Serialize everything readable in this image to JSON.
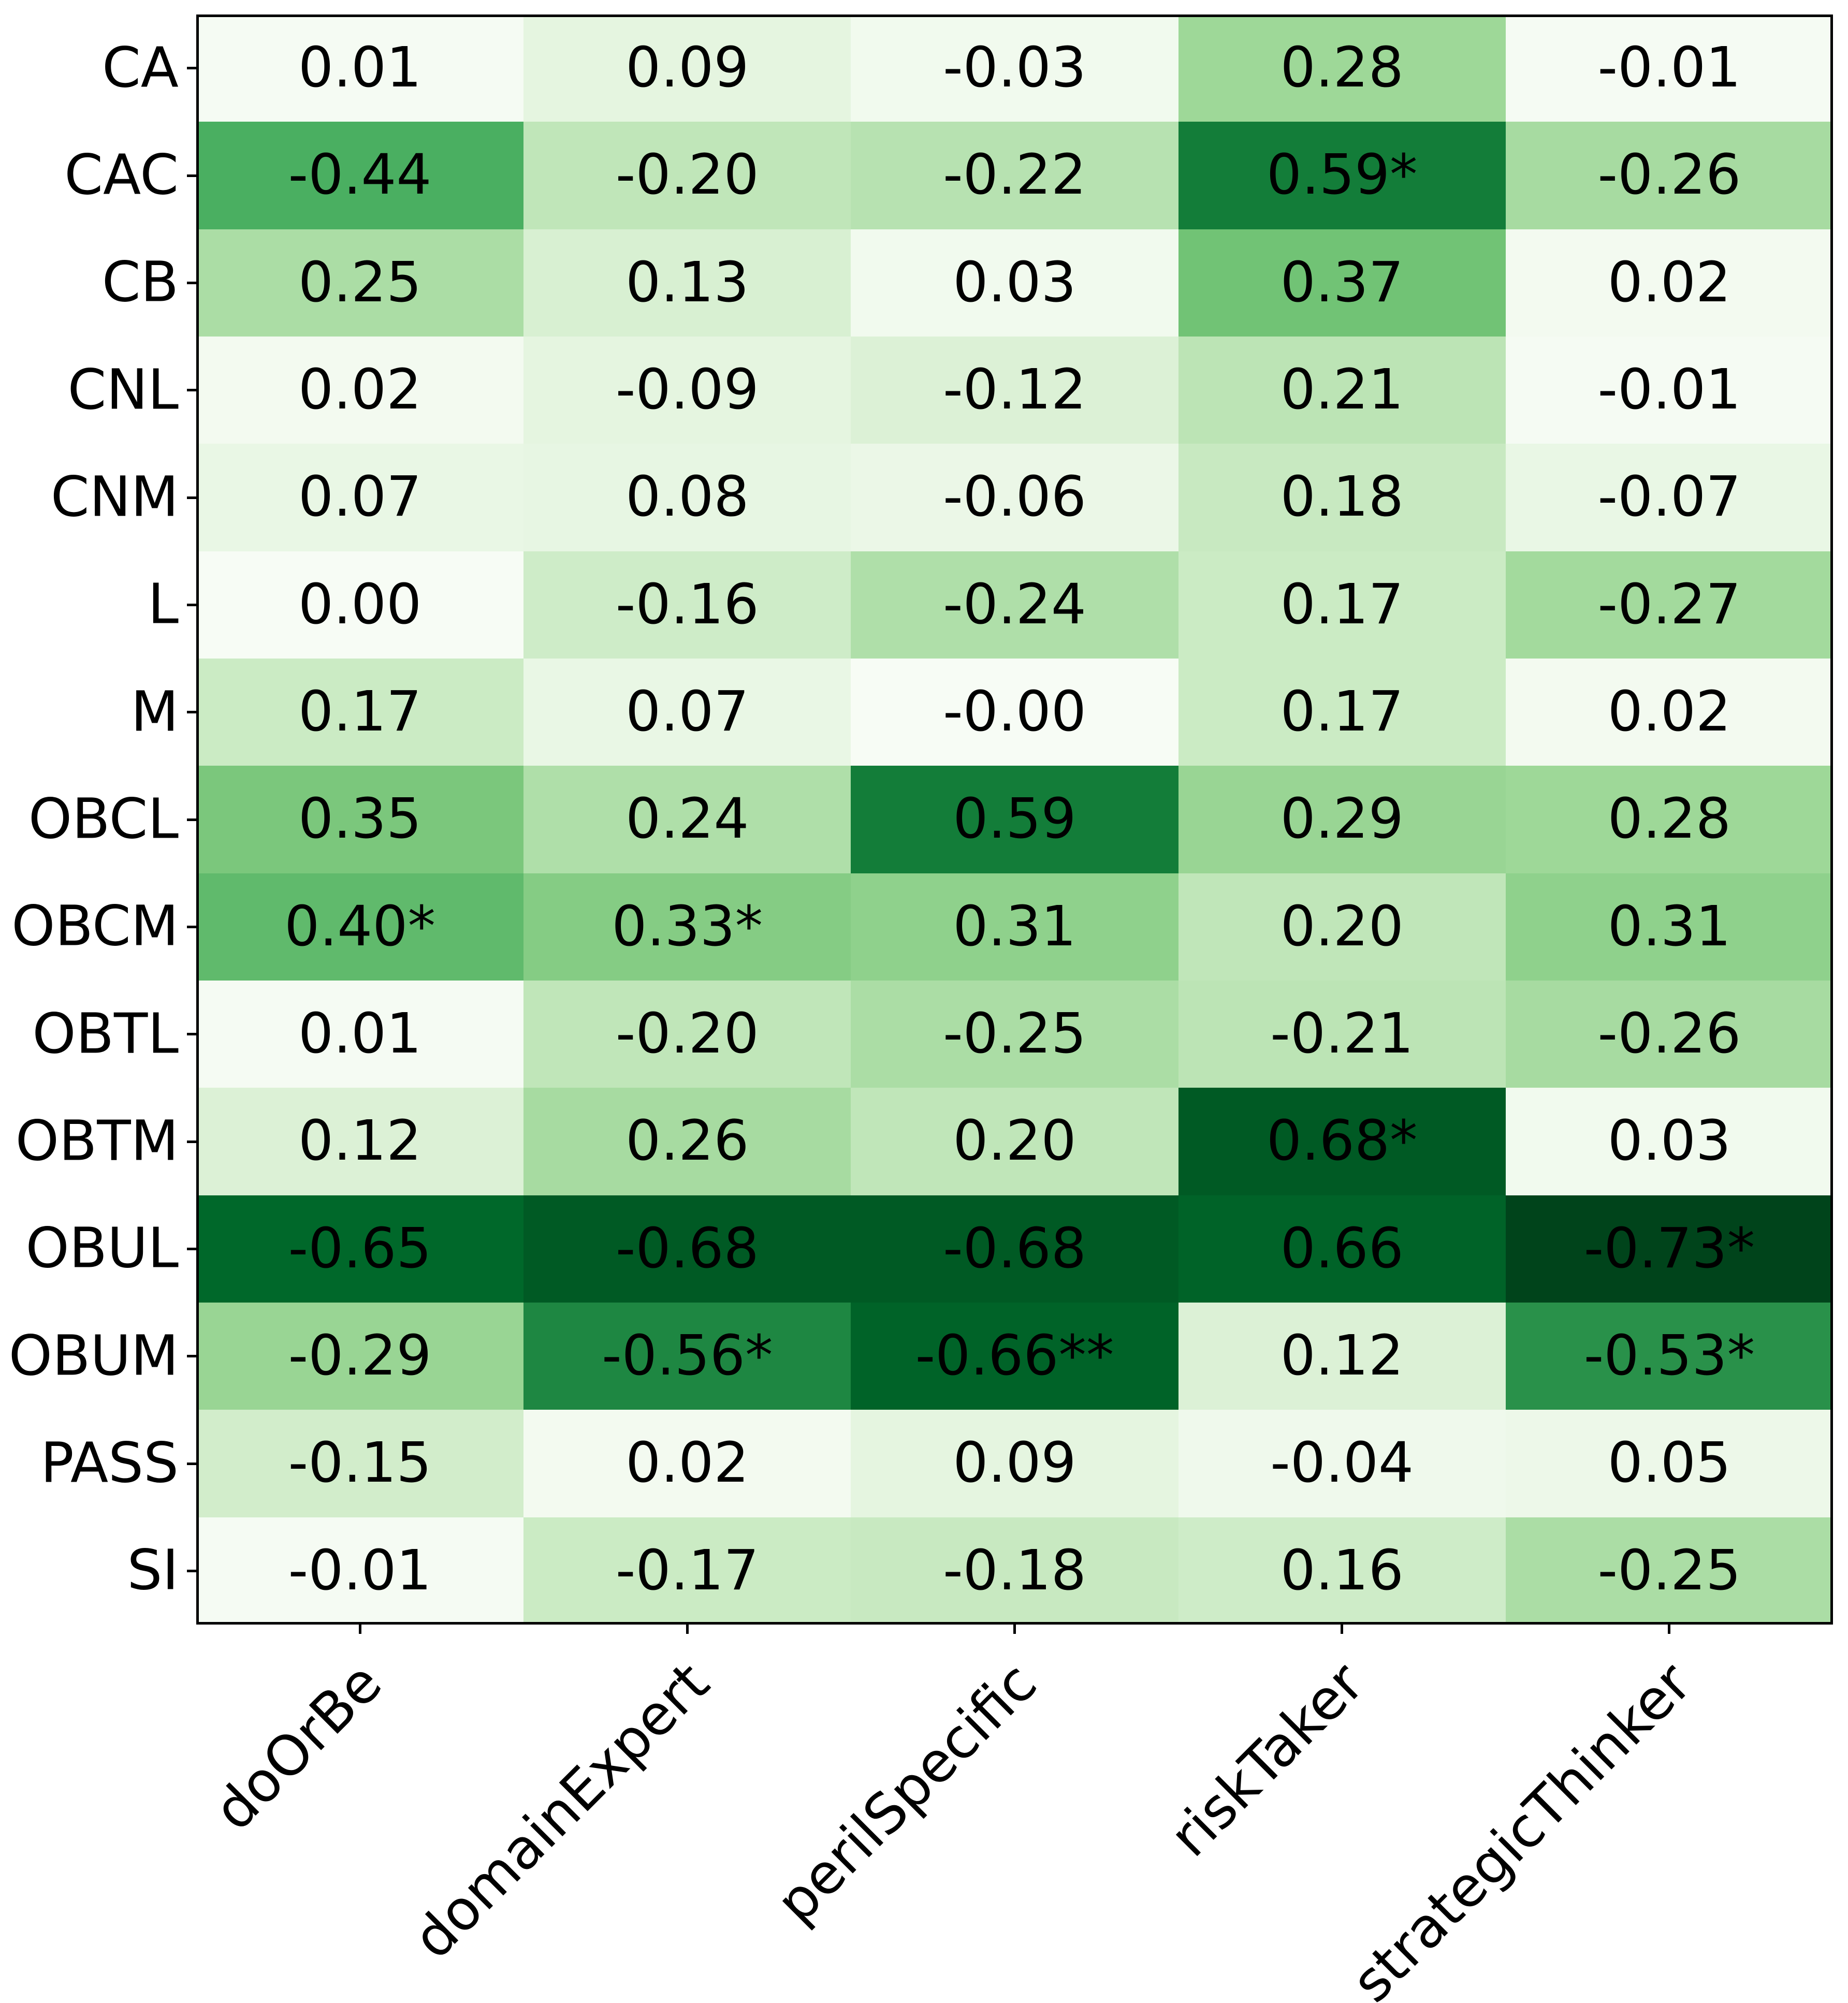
{
  "chart_data": {
    "type": "heatmap",
    "title": "",
    "xlabel": "",
    "ylabel": "",
    "rows": [
      "CA",
      "CAC",
      "CB",
      "CNL",
      "CNM",
      "L",
      "M",
      "OBCL",
      "OBCM",
      "OBTL",
      "OBTM",
      "OBUL",
      "OBUM",
      "PASS",
      "SI"
    ],
    "columns": [
      "doOrBe",
      "domainExpert",
      "perilSpecific",
      "riskTaker",
      "strategicThinker"
    ],
    "cell_labels": [
      [
        "0.01",
        "0.09",
        "-0.03",
        "0.28",
        "-0.01"
      ],
      [
        "-0.44",
        "-0.20",
        "-0.22",
        "0.59*",
        "-0.26"
      ],
      [
        "0.25",
        "0.13",
        "0.03",
        "0.37",
        "0.02"
      ],
      [
        "0.02",
        "-0.09",
        "-0.12",
        "0.21",
        "-0.01"
      ],
      [
        "0.07",
        "0.08",
        "-0.06",
        "0.18",
        "-0.07"
      ],
      [
        "0.00",
        "-0.16",
        "-0.24",
        "0.17",
        "-0.27"
      ],
      [
        "0.17",
        "0.07",
        "-0.00",
        "0.17",
        "0.02"
      ],
      [
        "0.35",
        "0.24",
        "0.59",
        "0.29",
        "0.28"
      ],
      [
        "0.40*",
        "0.33*",
        "0.31",
        "0.20",
        "0.31"
      ],
      [
        "0.01",
        "-0.20",
        "-0.25",
        "-0.21",
        "-0.26"
      ],
      [
        "0.12",
        "0.26",
        "0.20",
        "0.68*",
        "0.03"
      ],
      [
        "-0.65",
        "-0.68",
        "-0.68",
        "0.66",
        "-0.73*"
      ],
      [
        "-0.29",
        "-0.56*",
        "-0.66**",
        "0.12",
        "-0.53*"
      ],
      [
        "-0.15",
        "0.02",
        "0.09",
        "-0.04",
        "0.05"
      ],
      [
        "-0.01",
        "-0.17",
        "-0.18",
        "0.16",
        "-0.25"
      ]
    ],
    "values": [
      [
        0.01,
        0.09,
        -0.03,
        0.28,
        -0.01
      ],
      [
        -0.44,
        -0.2,
        -0.22,
        0.59,
        -0.26
      ],
      [
        0.25,
        0.13,
        0.03,
        0.37,
        0.02
      ],
      [
        0.02,
        -0.09,
        -0.12,
        0.21,
        -0.01
      ],
      [
        0.07,
        0.08,
        -0.06,
        0.18,
        -0.07
      ],
      [
        0.0,
        -0.16,
        -0.24,
        0.17,
        -0.27
      ],
      [
        0.17,
        0.07,
        -0.0,
        0.17,
        0.02
      ],
      [
        0.35,
        0.24,
        0.59,
        0.29,
        0.28
      ],
      [
        0.4,
        0.33,
        0.31,
        0.2,
        0.31
      ],
      [
        0.01,
        -0.2,
        -0.25,
        -0.21,
        -0.26
      ],
      [
        0.12,
        0.26,
        0.2,
        0.68,
        0.03
      ],
      [
        -0.65,
        -0.68,
        -0.68,
        0.66,
        -0.73
      ],
      [
        -0.29,
        -0.56,
        -0.66,
        0.12,
        -0.53
      ],
      [
        -0.15,
        0.02,
        0.09,
        -0.04,
        0.05
      ],
      [
        -0.01,
        -0.17,
        -0.18,
        0.16,
        -0.25
      ]
    ],
    "colormap": {
      "name": "Greens",
      "applied_to": "absolute_value",
      "vmin": 0,
      "vmax": 0.73,
      "stops": [
        "#f7fcf5",
        "#e5f5e0",
        "#c7e9c0",
        "#a1d99b",
        "#74c476",
        "#41ab5d",
        "#238b45",
        "#006d2c",
        "#00441b"
      ]
    },
    "cell_text_color": "#000000",
    "axis_color": "#000000",
    "background_color": "#ffffff",
    "legend_position": "none",
    "grid": false,
    "x_tick_rotation_deg": 45
  }
}
